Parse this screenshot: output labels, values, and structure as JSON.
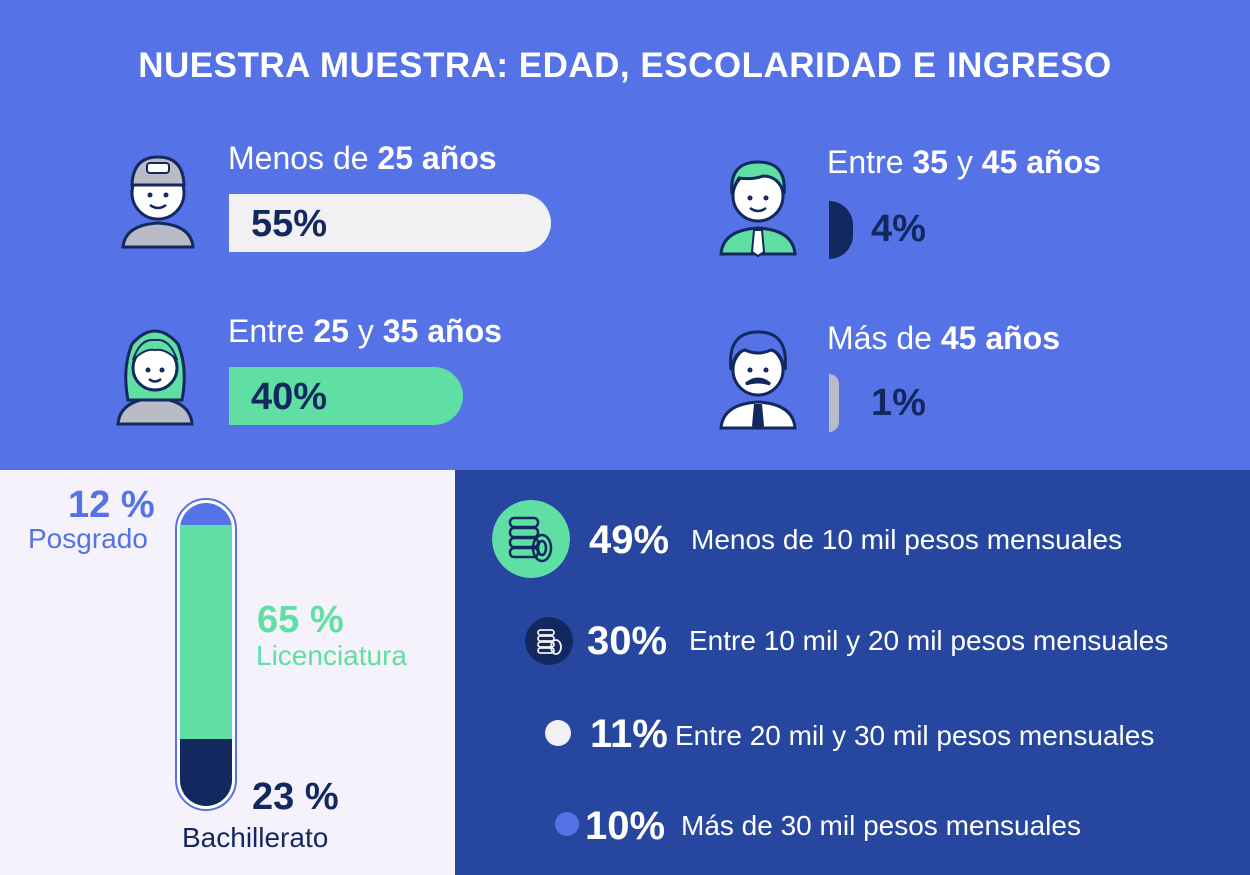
{
  "title": "NUESTRA MUESTRA: EDAD, ESCOLARIDAD E INGRESO",
  "colors": {
    "top_bg": "#5572e6",
    "edu_bg": "#f5f2fb",
    "income_bg": "#27469f",
    "green": "#5fdfa4",
    "navy": "#12285f",
    "white_bar": "#f1f1f3",
    "gray_bar": "#b9bcc7",
    "blue_accent": "#5572e6"
  },
  "age": [
    {
      "pre": "Menos de ",
      "bold1": "25 años",
      "mid": "",
      "bold2": "",
      "pct": "55%",
      "value": 55,
      "bar_color": "#f1f1f3",
      "avatar": "young-man-cap-icon"
    },
    {
      "pre": "Entre ",
      "bold1": "25",
      "mid": " y ",
      "bold2": "35 años",
      "pct": "40%",
      "value": 40,
      "bar_color": "#5fdfa4",
      "avatar": "young-woman-icon"
    },
    {
      "pre": "Entre ",
      "bold1": "35",
      "mid": " y ",
      "bold2": "45 años",
      "pct": "4%",
      "value": 4,
      "bar_color": "#12285f",
      "avatar": "man-tie-icon"
    },
    {
      "pre": "Más de ",
      "bold1": "45 años",
      "mid": "",
      "bold2": "",
      "pct": "1%",
      "value": 1,
      "bar_color": "#b9bcc7",
      "avatar": "older-man-mustache-icon"
    }
  ],
  "education": [
    {
      "pct": "12 %",
      "label": "Posgrado",
      "value": 12,
      "color": "#5572e6"
    },
    {
      "pct": "65 %",
      "label": "Licenciatura",
      "value": 65,
      "color": "#5fdfa4"
    },
    {
      "pct": "23 %",
      "label": "Bachillerato",
      "value": 23,
      "color": "#12285f"
    }
  ],
  "income": [
    {
      "pct": "49%",
      "label": "Menos de 10 mil pesos mensuales",
      "value": 49,
      "color": "#5fdfa4",
      "icon": "coins-icon"
    },
    {
      "pct": "30%",
      "label": "Entre 10 mil y 20 mil pesos mensuales",
      "value": 30,
      "color": "#12285f",
      "icon": "coins-icon"
    },
    {
      "pct": "11%",
      "label": "Entre 20 mil y 30 mil pesos mensuales",
      "value": 11,
      "color": "#f1f1f3",
      "icon": "dot-icon"
    },
    {
      "pct": "10%",
      "label": "Más de 30 mil pesos mensuales",
      "value": 10,
      "color": "#5572e6",
      "icon": "dot-icon"
    }
  ],
  "chart_data": [
    {
      "type": "bar",
      "title": "",
      "categories": [
        "Menos de 25 años",
        "Entre 25 y 35 años",
        "Entre 35 y 45 años",
        "Más de 45 años"
      ],
      "values": [
        55,
        40,
        4,
        1
      ]
    },
    {
      "type": "bar",
      "title": "",
      "categories": [
        "Posgrado",
        "Licenciatura",
        "Bachillerato"
      ],
      "values": [
        12,
        65,
        23
      ]
    },
    {
      "type": "bar",
      "title": "",
      "categories": [
        "Menos de 10 mil pesos mensuales",
        "Entre 10 mil y 20 mil pesos mensuales",
        "Entre 20 mil y 30 mil pesos mensuales",
        "Más de 30 mil pesos mensuales"
      ],
      "values": [
        49,
        30,
        11,
        10
      ]
    }
  ]
}
